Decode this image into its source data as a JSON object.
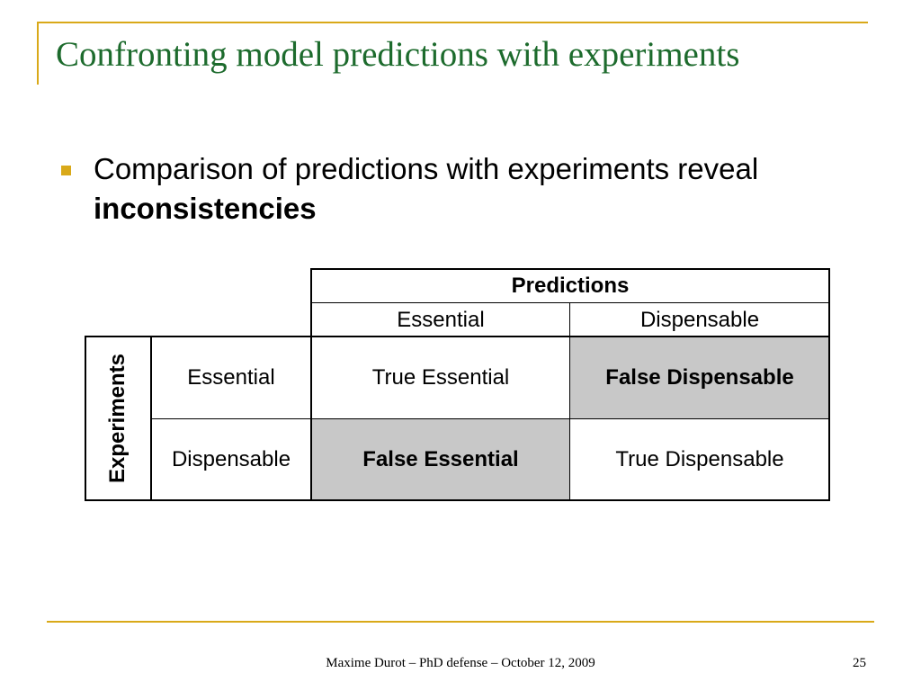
{
  "slide": {
    "title": "Confronting model predictions with experiments",
    "bullet": {
      "text": "Comparison of predictions with experiments reveal",
      "bold_text": "inconsistencies"
    }
  },
  "table": {
    "col_group_header": "Predictions",
    "col_headers": [
      "Essential",
      "Dispensable"
    ],
    "row_group_header": "Experiments",
    "row_headers": [
      "Essential",
      "Dispensable"
    ],
    "cells": [
      [
        "True Essential",
        "False Dispensable"
      ],
      [
        "False Essential",
        "True Dispensable"
      ]
    ],
    "highlight_color": "#c8c8c8"
  },
  "footer": {
    "text": "Maxime Durot – PhD defense – October 12, 2009",
    "page_number": "25"
  },
  "colors": {
    "accent": "#d9a919",
    "title": "#1d6b2d"
  }
}
